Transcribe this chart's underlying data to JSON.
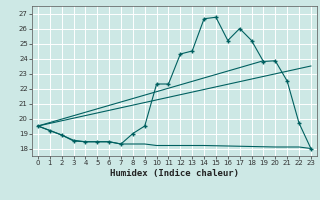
{
  "title": "",
  "xlabel": "Humidex (Indice chaleur)",
  "ylabel": "",
  "xlim": [
    -0.5,
    23.5
  ],
  "ylim": [
    17.5,
    27.5
  ],
  "xticks": [
    0,
    1,
    2,
    3,
    4,
    5,
    6,
    7,
    8,
    9,
    10,
    11,
    12,
    13,
    14,
    15,
    16,
    17,
    18,
    19,
    20,
    21,
    22,
    23
  ],
  "yticks": [
    18,
    19,
    20,
    21,
    22,
    23,
    24,
    25,
    26,
    27
  ],
  "background_color": "#cde8e5",
  "grid_color": "#ffffff",
  "line_color": "#006060",
  "line1_x": [
    0,
    1,
    2,
    3,
    4,
    5,
    6,
    7,
    8,
    9,
    10,
    11,
    12,
    13,
    14,
    15,
    16,
    17,
    18,
    19,
    20,
    21,
    22,
    23
  ],
  "line1_y": [
    19.5,
    19.2,
    18.9,
    18.5,
    18.45,
    18.45,
    18.45,
    18.3,
    19.0,
    19.5,
    22.3,
    22.3,
    24.3,
    24.5,
    26.65,
    26.75,
    25.2,
    26.0,
    25.2,
    23.8,
    23.85,
    22.5,
    19.7,
    18.0
  ],
  "line2_x": [
    0,
    1,
    2,
    3,
    4,
    5,
    6,
    7,
    8,
    9,
    10,
    11,
    12,
    13,
    14,
    20,
    21,
    22,
    23
  ],
  "line2_y": [
    19.5,
    19.2,
    18.9,
    18.55,
    18.45,
    18.45,
    18.45,
    18.3,
    18.3,
    18.3,
    18.2,
    18.2,
    18.2,
    18.2,
    18.2,
    18.1,
    18.1,
    18.1,
    18.0
  ],
  "line3_x": [
    0,
    23
  ],
  "line3_y": [
    19.5,
    23.5
  ],
  "line4_x": [
    0,
    19
  ],
  "line4_y": [
    19.5,
    23.85
  ]
}
